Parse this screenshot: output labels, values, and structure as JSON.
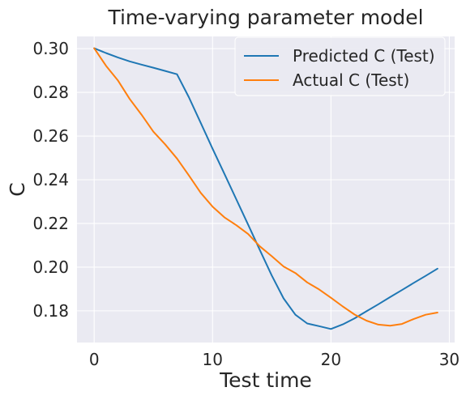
{
  "chart_data": {
    "type": "line",
    "title": "Time-varying parameter model",
    "xlabel": "Test time",
    "ylabel": "C",
    "xlim": [
      -1.45,
      30.45
    ],
    "ylim": [
      0.1655,
      0.3056
    ],
    "xticks": [
      0,
      10,
      20,
      30
    ],
    "xtick_labels": [
      "0",
      "10",
      "20",
      "30"
    ],
    "yticks": [
      0.18,
      0.2,
      0.22,
      0.24,
      0.26,
      0.28,
      0.3
    ],
    "ytick_labels": [
      "0.18",
      "0.20",
      "0.22",
      "0.24",
      "0.26",
      "0.28",
      "0.30"
    ],
    "grid": true,
    "legend": "top-right",
    "x": [
      0,
      1,
      2,
      3,
      4,
      5,
      6,
      7,
      8,
      9,
      10,
      11,
      12,
      13,
      14,
      15,
      16,
      17,
      18,
      19,
      20,
      21,
      22,
      23,
      24,
      25,
      26,
      27,
      28,
      29
    ],
    "series": [
      {
        "name": "Predicted C (Test)",
        "color": "#1f77b4",
        "values": [
          0.3002,
          0.298,
          0.296,
          0.2942,
          0.2927,
          0.2913,
          0.2898,
          0.2883,
          0.2778,
          0.266,
          0.2542,
          0.2427,
          0.2311,
          0.2195,
          0.2078,
          0.1962,
          0.1857,
          0.1782,
          0.1742,
          0.173,
          0.1717,
          0.1738,
          0.1766,
          0.1798,
          0.183,
          0.1863,
          0.1895,
          0.1928,
          0.196,
          0.1993
        ]
      },
      {
        "name": "Actual C (Test)",
        "color": "#ff7f0e",
        "values": [
          0.3002,
          0.2922,
          0.2855,
          0.277,
          0.2698,
          0.262,
          0.2562,
          0.2497,
          0.242,
          0.234,
          0.2277,
          0.2228,
          0.2192,
          0.2152,
          0.2095,
          0.205,
          0.2003,
          0.1973,
          0.193,
          0.1898,
          0.186,
          0.182,
          0.1783,
          0.1755,
          0.1737,
          0.1732,
          0.174,
          0.1763,
          0.1782,
          0.1792
        ]
      }
    ]
  }
}
